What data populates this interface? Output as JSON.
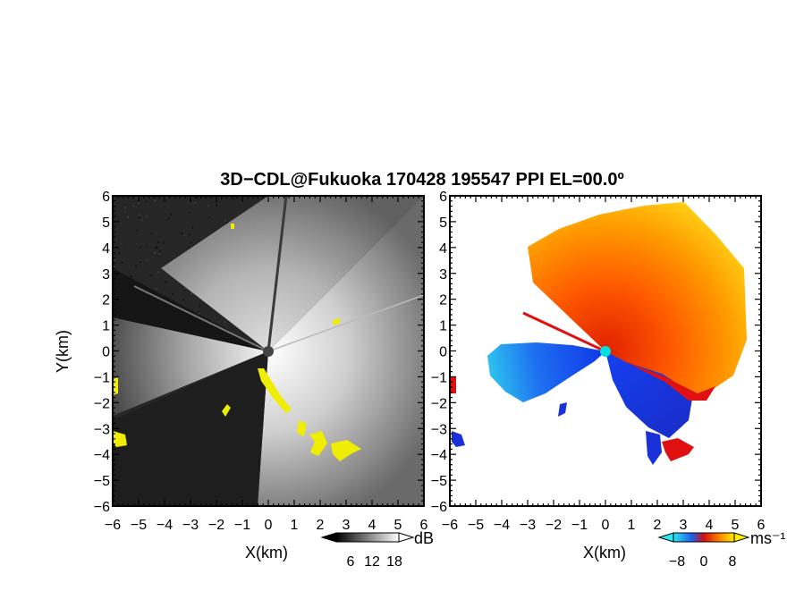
{
  "title": "3D−CDL@Fukuoka 170428 195547 PPI EL=00.0º",
  "panels": [
    {
      "name": "reflectivity",
      "xlabel": "X(km)",
      "ylabel": "Y(km)",
      "colorbar": {
        "unit": "dB",
        "ticks": [
          "6",
          "12",
          "18"
        ]
      }
    },
    {
      "name": "doppler-velocity",
      "xlabel": "X(km)",
      "ylabel": "",
      "colorbar": {
        "unit": "ms⁻¹",
        "ticks": [
          "−8",
          "0",
          "8"
        ]
      }
    }
  ],
  "chart_data": [
    {
      "type": "heatmap",
      "title": "3D−CDL@Fukuoka 170428 195547 PPI EL=00.0º",
      "xlabel": "X(km)",
      "ylabel": "Y(km)",
      "xlim": [
        -6,
        6
      ],
      "ylim": [
        -6,
        6
      ],
      "x_ticks": [
        "−6",
        "−5",
        "−4",
        "−3",
        "−2",
        "−1",
        "0",
        "1",
        "2",
        "3",
        "4",
        "5",
        "6"
      ],
      "y_ticks": [
        "−6",
        "−5",
        "−4",
        "−3",
        "−2",
        "−1",
        "0",
        "1",
        "2",
        "3",
        "4",
        "5",
        "6"
      ],
      "colorbar": {
        "unit": "dB",
        "ticks": [
          6,
          12,
          18
        ],
        "colors": [
          "#000000",
          "#ffffff"
        ]
      },
      "mask_color": "#f0ee00",
      "background_color": "#262626"
    },
    {
      "type": "heatmap",
      "xlabel": "X(km)",
      "ylabel": "",
      "xlim": [
        -6,
        6
      ],
      "ylim": [
        -6,
        6
      ],
      "x_ticks": [
        "−6",
        "−5",
        "−4",
        "−3",
        "−2",
        "−1",
        "0",
        "1",
        "2",
        "3",
        "4",
        "5",
        "6"
      ],
      "y_ticks": [
        "−6",
        "−5",
        "−4",
        "−3",
        "−2",
        "−1",
        "0",
        "1",
        "2",
        "3",
        "4",
        "5",
        "6"
      ],
      "colorbar": {
        "unit": "ms⁻¹",
        "ticks": [
          -8,
          0,
          8
        ],
        "colors": [
          "#00e0f0",
          "#1040f0",
          "#e01010",
          "#ff8000",
          "#ffee00"
        ]
      },
      "radar_site_color": "#00e0e0"
    }
  ]
}
